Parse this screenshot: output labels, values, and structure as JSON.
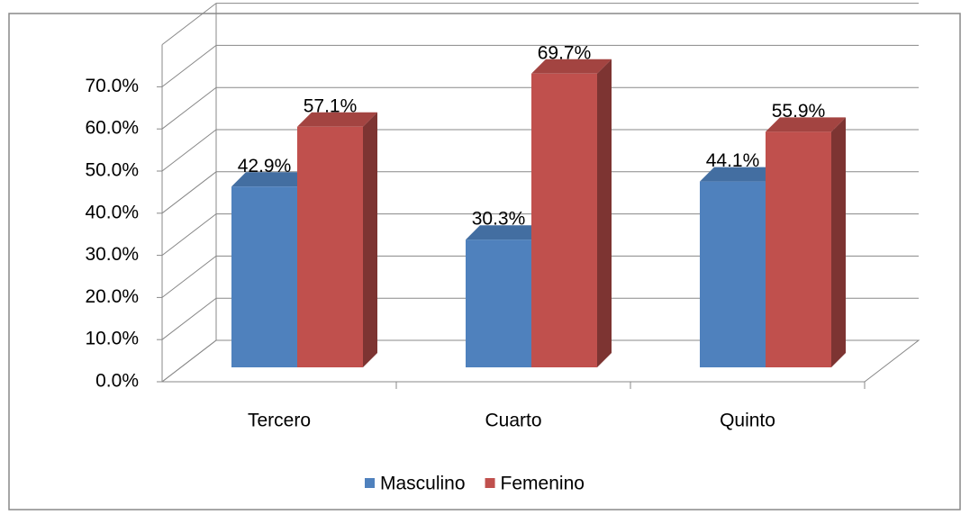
{
  "chart_data": {
    "type": "bar3d",
    "categories": [
      "Tercero",
      "Cuarto",
      "Quinto"
    ],
    "series": [
      {
        "name": "Masculino",
        "color": "#4f81bd",
        "values": [
          42.9,
          30.3,
          44.1
        ],
        "value_labels": [
          "42.9%",
          "30.3%",
          "44.1%"
        ]
      },
      {
        "name": "Femenino",
        "color": "#c0504d",
        "values": [
          57.1,
          69.7,
          55.9
        ],
        "value_labels": [
          "57.1%",
          "69.7%",
          "55.9%"
        ]
      }
    ],
    "ylim": [
      0,
      80
    ],
    "yticks": [
      {
        "value": 0,
        "label": "0.0%"
      },
      {
        "value": 10,
        "label": "10.0%"
      },
      {
        "value": 20,
        "label": "20.0%"
      },
      {
        "value": 30,
        "label": "30.0%"
      },
      {
        "value": 40,
        "label": "40.0%"
      },
      {
        "value": 50,
        "label": "50.0%"
      },
      {
        "value": 60,
        "label": "60.0%"
      },
      {
        "value": 70,
        "label": "70.0%"
      }
    ],
    "grid": true,
    "legend": "bottom"
  }
}
